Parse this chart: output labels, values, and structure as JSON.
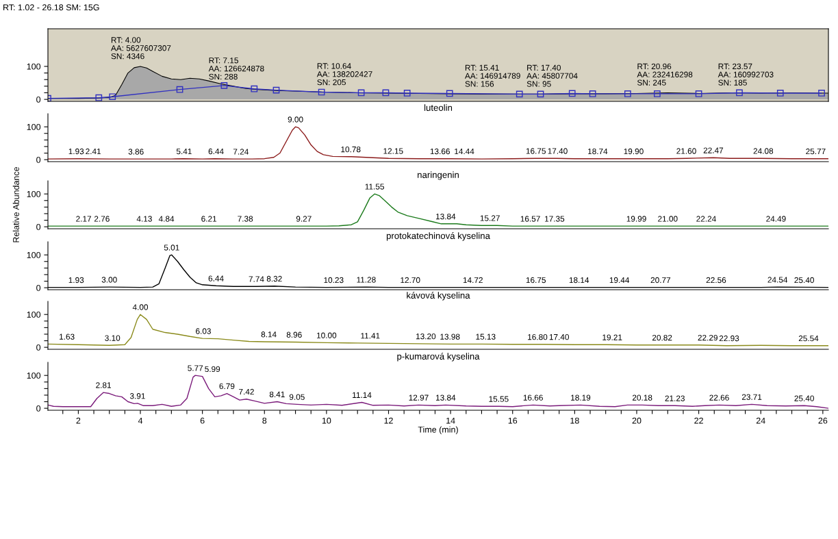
{
  "chart_data": [
    {
      "type": "area",
      "title": "RT: 1.02 - 26.18 SM: 15G",
      "xlim": [
        1.02,
        26.18
      ],
      "ylim": [
        -6,
        214
      ],
      "yticks": [
        0,
        {
          "value": 20,
          "label": null
        },
        {
          "value": 40,
          "label": null
        },
        {
          "value": 60,
          "label": null
        },
        {
          "value": 80,
          "label": null
        },
        100
      ],
      "tick_labels": "y",
      "series": [
        {
          "type": "area",
          "color": "#a8a8a8",
          "x": [
            1.02,
            2,
            2.5,
            3.0,
            3.2,
            3.4,
            3.6,
            3.8,
            4.0,
            4.2,
            4.4,
            4.7,
            5.0,
            5.3,
            5.6,
            5.9,
            6.2,
            6.6,
            7.0,
            7.4,
            7.8,
            8.4,
            9,
            10,
            11,
            12,
            13,
            14,
            15,
            16,
            17,
            18,
            19,
            20,
            21,
            22,
            23,
            24,
            25,
            26.18
          ],
          "values": [
            3,
            3,
            4,
            6,
            12,
            45,
            80,
            96,
            100,
            95,
            85,
            70,
            62,
            60,
            64,
            62,
            56,
            47,
            40,
            33,
            30,
            27,
            25,
            22,
            20,
            19,
            18,
            17,
            16,
            16,
            16,
            17,
            17,
            18,
            20,
            18,
            20,
            19,
            20,
            19
          ]
        },
        {
          "type": "line",
          "color": "#3030c0",
          "marker": "square",
          "x": [
            1.02,
            2.66,
            3.1,
            5.27,
            6.7,
            7.67,
            8.38,
            9.84,
            11.12,
            11.91,
            12.6,
            13.97,
            16.22,
            16.9,
            17.92,
            18.58,
            19.71,
            20.66,
            22.0,
            23.31,
            24.63,
            25.96
          ],
          "values": [
            3,
            5,
            8,
            30,
            42,
            32,
            28,
            22,
            20,
            20,
            19,
            18,
            16,
            16,
            18,
            17,
            17,
            17,
            17,
            20,
            19,
            19
          ]
        }
      ],
      "annotations": [
        {
          "text": "RT: 4.00\nAA: 5627607307\nSN: 4346",
          "x": 4.0,
          "y": 100
        },
        {
          "text": "RT: 7.15\nAA: 126624878\nSN: 288",
          "x": 7.15,
          "y": 38
        },
        {
          "text": "RT: 10.64\nAA: 138202427\nSN: 205",
          "x": 10.64,
          "y": 21
        },
        {
          "text": "RT: 15.41\nAA: 146914789\nSN: 156",
          "x": 15.41,
          "y": 16
        },
        {
          "text": "RT: 17.40\nAA: 45807704\nSN: 95",
          "x": 17.4,
          "y": 16
        },
        {
          "text": "RT: 20.96\nAA: 232416298\nSN: 245",
          "x": 20.96,
          "y": 20
        },
        {
          "text": "RT: 23.57\nAA: 160992703\nSN: 185",
          "x": 23.57,
          "y": 20
        }
      ]
    },
    {
      "type": "line",
      "title": "luteolin",
      "xlim": [
        1.02,
        26.18
      ],
      "ylim": [
        -6,
        140
      ],
      "yticks": [
        0,
        {
          "value": 20,
          "label": null
        },
        {
          "value": 40,
          "label": null
        },
        {
          "value": 60,
          "label": null
        },
        {
          "value": 80,
          "label": null
        },
        100
      ],
      "tick_labels": "y",
      "series": [
        {
          "color": "#8b1a1a",
          "x": [
            1.02,
            2,
            3,
            4,
            5,
            5.4,
            6,
            6.4,
            7,
            7.6,
            8.0,
            8.3,
            8.5,
            8.7,
            8.9,
            9.0,
            9.1,
            9.3,
            9.5,
            9.7,
            9.9,
            10.2,
            10.8,
            11.5,
            12,
            13,
            14,
            15,
            16,
            16.75,
            17.4,
            18,
            19,
            20,
            21,
            21.6,
            22.47,
            23,
            24,
            25,
            26.18
          ],
          "values": [
            2,
            3,
            2,
            2,
            2,
            3,
            2,
            3,
            2,
            2,
            3,
            7,
            20,
            55,
            90,
            100,
            97,
            75,
            45,
            25,
            15,
            10,
            9,
            6,
            4,
            3,
            3,
            2,
            3,
            4,
            4,
            3,
            3,
            3,
            3,
            4,
            6,
            4,
            4,
            3,
            3
          ]
        }
      ],
      "annotations": [
        {
          "text": "1.93",
          "x": 1.93,
          "y": 3
        },
        {
          "text": "2.41",
          "x": 2.41,
          "y": 3
        },
        {
          "text": "3.86",
          "x": 3.86,
          "y": 2
        },
        {
          "text": "5.41",
          "x": 5.41,
          "y": 3
        },
        {
          "text": "6.44",
          "x": 6.44,
          "y": 3
        },
        {
          "text": "7.24",
          "x": 7.24,
          "y": 2
        },
        {
          "text": "9.00",
          "x": 9.0,
          "y": 100
        },
        {
          "text": "10.78",
          "x": 10.78,
          "y": 9
        },
        {
          "text": "12.15",
          "x": 12.15,
          "y": 4
        },
        {
          "text": "13.66",
          "x": 13.66,
          "y": 3
        },
        {
          "text": "14.44",
          "x": 14.44,
          "y": 3
        },
        {
          "text": "16.75",
          "x": 16.75,
          "y": 4
        },
        {
          "text": "17.40",
          "x": 17.4,
          "y": 4
        },
        {
          "text": "18.74",
          "x": 18.74,
          "y": 3
        },
        {
          "text": "19.90",
          "x": 19.9,
          "y": 3
        },
        {
          "text": "21.60",
          "x": 21.6,
          "y": 4
        },
        {
          "text": "22.47",
          "x": 22.47,
          "y": 6
        },
        {
          "text": "24.08",
          "x": 24.08,
          "y": 4
        },
        {
          "text": "25.77",
          "x": 25.77,
          "y": 3
        }
      ]
    },
    {
      "type": "line",
      "title": "naringenin",
      "ylabel": "Relative Abundance",
      "xlim": [
        1.02,
        26.18
      ],
      "ylim": [
        -6,
        140
      ],
      "yticks": [
        0,
        {
          "value": 20,
          "label": null
        },
        {
          "value": 40,
          "label": null
        },
        {
          "value": 60,
          "label": null
        },
        {
          "value": 80,
          "label": null
        },
        100
      ],
      "tick_labels": "y",
      "series": [
        {
          "color": "#1a7a1a",
          "x": [
            1.02,
            2,
            3,
            4,
            5,
            6,
            7,
            8,
            9,
            10,
            10.4,
            10.8,
            11.0,
            11.2,
            11.4,
            11.55,
            11.7,
            11.9,
            12.1,
            12.3,
            12.6,
            13.0,
            13.4,
            13.7,
            14.2,
            14.5,
            15,
            15.5,
            16,
            17,
            18,
            20,
            22,
            24,
            26.18
          ],
          "values": [
            2,
            2,
            2,
            2,
            2,
            2,
            2,
            2,
            2,
            2,
            3,
            6,
            15,
            50,
            88,
            100,
            95,
            78,
            60,
            45,
            34,
            25,
            16,
            9,
            9,
            6,
            4,
            4,
            2,
            2,
            2,
            2,
            2,
            2,
            2
          ]
        }
      ],
      "annotations": [
        {
          "text": "2.17",
          "x": 2.17,
          "y": 2
        },
        {
          "text": "2.76",
          "x": 2.76,
          "y": 2
        },
        {
          "text": "4.13",
          "x": 4.13,
          "y": 2
        },
        {
          "text": "4.84",
          "x": 4.84,
          "y": 2
        },
        {
          "text": "6.21",
          "x": 6.21,
          "y": 2
        },
        {
          "text": "7.38",
          "x": 7.38,
          "y": 2
        },
        {
          "text": "9.27",
          "x": 9.27,
          "y": 2
        },
        {
          "text": "11.55",
          "x": 11.55,
          "y": 100
        },
        {
          "text": "13.84",
          "x": 13.84,
          "y": 9
        },
        {
          "text": "15.27",
          "x": 15.27,
          "y": 4
        },
        {
          "text": "16.57",
          "x": 16.57,
          "y": 2
        },
        {
          "text": "17.35",
          "x": 17.35,
          "y": 2
        },
        {
          "text": "19.99",
          "x": 19.99,
          "y": 2
        },
        {
          "text": "21.00",
          "x": 21.0,
          "y": 2
        },
        {
          "text": "22.24",
          "x": 22.24,
          "y": 2
        },
        {
          "text": "24.49",
          "x": 24.49,
          "y": 2
        }
      ]
    },
    {
      "type": "line",
      "title": "protokatechinová kyselina",
      "xlim": [
        1.02,
        26.18
      ],
      "ylim": [
        -6,
        140
      ],
      "yticks": [
        0,
        {
          "value": 20,
          "label": null
        },
        {
          "value": 40,
          "label": null
        },
        {
          "value": 60,
          "label": null
        },
        {
          "value": 80,
          "label": null
        },
        100
      ],
      "tick_labels": "y",
      "series": [
        {
          "color": "#000000",
          "x": [
            1.02,
            2,
            3,
            4,
            4.4,
            4.6,
            4.8,
            4.95,
            5.01,
            5.2,
            5.4,
            5.6,
            5.8,
            6.0,
            6.44,
            7,
            7.74,
            8.32,
            9,
            10,
            11.28,
            12,
            14,
            16,
            18,
            20,
            22,
            24,
            24.54,
            26.18
          ],
          "values": [
            1,
            1,
            2,
            1,
            2,
            12,
            60,
            98,
            100,
            80,
            55,
            32,
            15,
            9,
            6,
            4,
            4,
            5,
            2,
            1,
            2,
            1,
            1,
            1,
            1,
            1,
            1,
            1,
            2,
            1
          ]
        }
      ],
      "annotations": [
        {
          "text": "1.93",
          "x": 1.93,
          "y": 1
        },
        {
          "text": "3.00",
          "x": 3.0,
          "y": 2
        },
        {
          "text": "5.01",
          "x": 5.01,
          "y": 100
        },
        {
          "text": "6.44",
          "x": 6.44,
          "y": 6
        },
        {
          "text": "7.74",
          "x": 7.74,
          "y": 4
        },
        {
          "text": "8.32",
          "x": 8.32,
          "y": 5
        },
        {
          "text": "10.23",
          "x": 10.23,
          "y": 1
        },
        {
          "text": "11.28",
          "x": 11.28,
          "y": 2
        },
        {
          "text": "12.70",
          "x": 12.7,
          "y": 1
        },
        {
          "text": "14.72",
          "x": 14.72,
          "y": 1
        },
        {
          "text": "16.75",
          "x": 16.75,
          "y": 1
        },
        {
          "text": "18.14",
          "x": 18.14,
          "y": 1
        },
        {
          "text": "19.44",
          "x": 19.44,
          "y": 1
        },
        {
          "text": "20.77",
          "x": 20.77,
          "y": 1
        },
        {
          "text": "22.56",
          "x": 22.56,
          "y": 1
        },
        {
          "text": "24.54",
          "x": 24.54,
          "y": 2
        },
        {
          "text": "25.40",
          "x": 25.4,
          "y": 1
        }
      ]
    },
    {
      "type": "line",
      "title": "kávová kyselina",
      "xlim": [
        1.02,
        26.18
      ],
      "ylim": [
        -6,
        140
      ],
      "yticks": [
        0,
        {
          "value": 20,
          "label": null
        },
        {
          "value": 40,
          "label": null
        },
        {
          "value": 60,
          "label": null
        },
        {
          "value": 80,
          "label": null
        },
        100
      ],
      "tick_labels": "y",
      "series": [
        {
          "color": "#8a8a1a",
          "x": [
            1.02,
            2,
            3.0,
            3.5,
            3.7,
            3.9,
            4.0,
            4.2,
            4.4,
            4.8,
            5.2,
            5.6,
            6.0,
            6.5,
            7,
            7.5,
            8,
            9,
            10,
            11,
            12,
            13,
            14,
            15,
            16,
            17,
            18,
            19,
            20,
            21,
            22,
            22.9,
            24,
            25,
            26.18
          ],
          "values": [
            10,
            8,
            6,
            8,
            30,
            85,
            100,
            85,
            55,
            45,
            40,
            33,
            27,
            26,
            22,
            18,
            17,
            16,
            14,
            13,
            12,
            11,
            10,
            10,
            9,
            9,
            8,
            8,
            7,
            7,
            7,
            5,
            6,
            5,
            5
          ]
        }
      ],
      "annotations": [
        {
          "text": "1.63",
          "x": 1.63,
          "y": 10
        },
        {
          "text": "3.10",
          "x": 3.1,
          "y": 6
        },
        {
          "text": "4.00",
          "x": 4.0,
          "y": 100
        },
        {
          "text": "6.03",
          "x": 6.03,
          "y": 27
        },
        {
          "text": "8.14",
          "x": 8.14,
          "y": 17
        },
        {
          "text": "8.96",
          "x": 8.96,
          "y": 16
        },
        {
          "text": "10.00",
          "x": 10.0,
          "y": 14
        },
        {
          "text": "11.41",
          "x": 11.41,
          "y": 13
        },
        {
          "text": "13.20",
          "x": 13.2,
          "y": 11
        },
        {
          "text": "13.98",
          "x": 13.98,
          "y": 10
        },
        {
          "text": "15.13",
          "x": 15.13,
          "y": 10
        },
        {
          "text": "16.80",
          "x": 16.8,
          "y": 9
        },
        {
          "text": "17.40",
          "x": 17.4,
          "y": 9
        },
        {
          "text": "19.21",
          "x": 19.21,
          "y": 8
        },
        {
          "text": "20.82",
          "x": 20.82,
          "y": 7
        },
        {
          "text": "22.29",
          "x": 22.29,
          "y": 7
        },
        {
          "text": "22.93",
          "x": 22.93,
          "y": 5
        },
        {
          "text": "25.54",
          "x": 25.54,
          "y": 5
        }
      ]
    },
    {
      "type": "line",
      "title": "p-kumarová kyselina",
      "xlabel": "Time (min)",
      "xlim": [
        1.02,
        26.18
      ],
      "ylim": [
        -6,
        140
      ],
      "yticks": [
        0,
        {
          "value": 20,
          "label": null
        },
        {
          "value": 40,
          "label": null
        },
        {
          "value": 60,
          "label": null
        },
        {
          "value": 80,
          "label": null
        },
        100
      ],
      "xticks": [
        {
          "value": 1.5,
          "label": null
        },
        2,
        {
          "value": 2.5,
          "label": null
        },
        {
          "value": 3,
          "label": null
        },
        {
          "value": 3.5,
          "label": null
        },
        4,
        {
          "value": 4.5,
          "label": null
        },
        {
          "value": 5,
          "label": null
        },
        {
          "value": 5.5,
          "label": null
        },
        6,
        {
          "value": 6.5,
          "label": null
        },
        {
          "value": 7,
          "label": null
        },
        {
          "value": 7.5,
          "label": null
        },
        8,
        {
          "value": 8.5,
          "label": null
        },
        {
          "value": 9,
          "label": null
        },
        {
          "value": 9.5,
          "label": null
        },
        10,
        {
          "value": 10.5,
          "label": null
        },
        {
          "value": 11,
          "label": null
        },
        {
          "value": 11.5,
          "label": null
        },
        12,
        {
          "value": 12.5,
          "label": null
        },
        {
          "value": 13,
          "label": null
        },
        {
          "value": 13.5,
          "label": null
        },
        14,
        {
          "value": 14.5,
          "label": null
        },
        {
          "value": 15,
          "label": null
        },
        {
          "value": 15.5,
          "label": null
        },
        16,
        {
          "value": 16.5,
          "label": null
        },
        {
          "value": 17,
          "label": null
        },
        {
          "value": 17.5,
          "label": null
        },
        18,
        {
          "value": 18.5,
          "label": null
        },
        {
          "value": 19,
          "label": null
        },
        {
          "value": 19.5,
          "label": null
        },
        20,
        {
          "value": 20.5,
          "label": null
        },
        {
          "value": 21,
          "label": null
        },
        {
          "value": 21.5,
          "label": null
        },
        22,
        {
          "value": 22.5,
          "label": null
        },
        {
          "value": 23,
          "label": null
        },
        {
          "value": 23.5,
          "label": null
        },
        24,
        {
          "value": 24.5,
          "label": null
        },
        {
          "value": 25,
          "label": null
        },
        {
          "value": 25.5,
          "label": null
        },
        26
      ],
      "series": [
        {
          "color": "#7a1a7a",
          "x": [
            1.02,
            1.2,
            1.5,
            2.0,
            2.4,
            2.6,
            2.81,
            3.0,
            3.2,
            3.4,
            3.6,
            3.8,
            3.91,
            4.1,
            4.4,
            4.7,
            5.0,
            5.3,
            5.5,
            5.7,
            5.77,
            6.0,
            6.2,
            6.4,
            6.6,
            6.79,
            7.0,
            7.2,
            7.42,
            7.7,
            8.0,
            8.41,
            8.7,
            9.05,
            9.5,
            10,
            10.5,
            11.14,
            11.5,
            12,
            12.5,
            12.97,
            13.5,
            13.84,
            14.5,
            15,
            15.55,
            16,
            16.66,
            17.2,
            17.5,
            18.19,
            18.8,
            19.3,
            19.7,
            20.18,
            20.7,
            21.23,
            21.8,
            22.2,
            22.66,
            23.2,
            23.71,
            24.2,
            24.8,
            25.4,
            25.8,
            26.18
          ],
          "values": [
            10,
            6,
            5,
            5,
            5,
            30,
            48,
            45,
            38,
            35,
            20,
            14,
            15,
            8,
            8,
            12,
            6,
            10,
            30,
            95,
            100,
            97,
            60,
            35,
            38,
            45,
            35,
            25,
            28,
            22,
            15,
            20,
            14,
            12,
            10,
            12,
            9,
            18,
            9,
            10,
            7,
            10,
            8,
            10,
            7,
            6,
            6,
            5,
            10,
            7,
            8,
            10,
            6,
            5,
            10,
            10,
            8,
            8,
            6,
            8,
            10,
            8,
            12,
            8,
            7,
            8,
            5,
            0
          ]
        }
      ],
      "annotations": [
        {
          "text": "2.81",
          "x": 2.81,
          "y": 48
        },
        {
          "text": "3.91",
          "x": 3.91,
          "y": 15
        },
        {
          "text": "5.77",
          "x": 5.77,
          "y": 100
        },
        {
          "text": "5.99",
          "x": 5.99,
          "y": 97
        },
        {
          "text": "6.79",
          "x": 6.79,
          "y": 45
        },
        {
          "text": "7.42",
          "x": 7.42,
          "y": 28
        },
        {
          "text": "8.41",
          "x": 8.41,
          "y": 20
        },
        {
          "text": "9.05",
          "x": 9.05,
          "y": 12
        },
        {
          "text": "11.14",
          "x": 11.14,
          "y": 18
        },
        {
          "text": "12.97",
          "x": 12.97,
          "y": 10
        },
        {
          "text": "13.84",
          "x": 13.84,
          "y": 10
        },
        {
          "text": "15.55",
          "x": 15.55,
          "y": 6
        },
        {
          "text": "16.66",
          "x": 16.66,
          "y": 10
        },
        {
          "text": "18.19",
          "x": 18.19,
          "y": 10
        },
        {
          "text": "20.18",
          "x": 20.18,
          "y": 10
        },
        {
          "text": "21.23",
          "x": 21.23,
          "y": 8
        },
        {
          "text": "22.66",
          "x": 22.66,
          "y": 10
        },
        {
          "text": "23.71",
          "x": 23.71,
          "y": 12
        },
        {
          "text": "25.40",
          "x": 25.4,
          "y": 8
        }
      ]
    }
  ]
}
